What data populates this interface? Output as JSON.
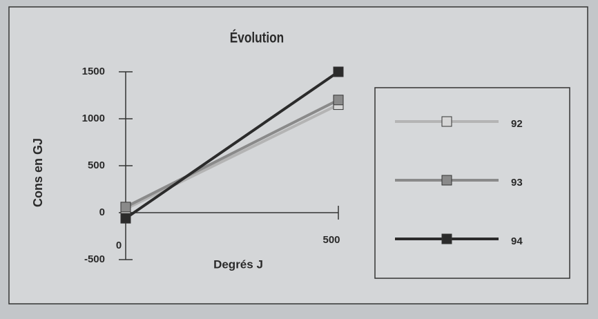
{
  "chart_data": {
    "type": "line",
    "title": "Évolution",
    "x_label": "Degrés J",
    "y_label": "Cons en GJ",
    "x": [
      0,
      500
    ],
    "series": [
      {
        "name": "92",
        "color": "#b4b4b4",
        "marker_color": "#d6d6d6",
        "values": [
          40,
          1150
        ]
      },
      {
        "name": "93",
        "color": "#8a8a8a",
        "marker_color": "#8a8a8a",
        "values": [
          60,
          1200
        ]
      },
      {
        "name": "94",
        "color": "#2b2b2b",
        "marker_color": "#2b2b2b",
        "values": [
          -60,
          1500
        ]
      }
    ],
    "xlim": [
      0,
      500
    ],
    "xticks": [
      0,
      500
    ],
    "ylim": [
      -500,
      1500
    ],
    "yticks": [
      -500,
      0,
      500,
      1000,
      1500
    ],
    "legend": "right",
    "marker": "square"
  }
}
